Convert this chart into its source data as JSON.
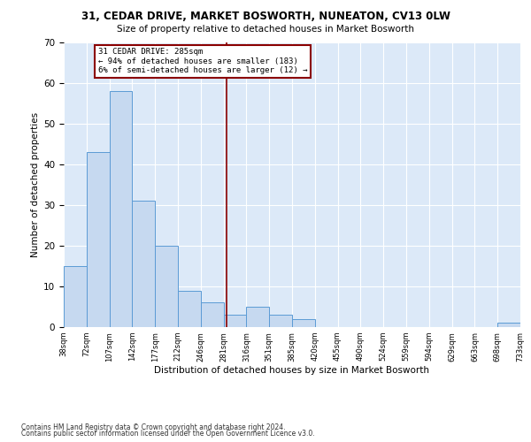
{
  "title1": "31, CEDAR DRIVE, MARKET BOSWORTH, NUNEATON, CV13 0LW",
  "title2": "Size of property relative to detached houses in Market Bosworth",
  "xlabel": "Distribution of detached houses by size in Market Bosworth",
  "ylabel": "Number of detached properties",
  "bar_values": [
    15,
    43,
    58,
    31,
    20,
    9,
    6,
    3,
    5,
    3,
    2,
    0,
    0,
    0,
    0,
    0,
    0,
    0,
    0,
    1
  ],
  "bin_edges": [
    38,
    72,
    107,
    142,
    177,
    212,
    246,
    281,
    316,
    351,
    385,
    420,
    455,
    490,
    524,
    559,
    594,
    629,
    663,
    698,
    733
  ],
  "tick_labels": [
    "38sqm",
    "72sqm",
    "107sqm",
    "142sqm",
    "177sqm",
    "212sqm",
    "246sqm",
    "281sqm",
    "316sqm",
    "351sqm",
    "385sqm",
    "420sqm",
    "455sqm",
    "490sqm",
    "524sqm",
    "559sqm",
    "594sqm",
    "629sqm",
    "663sqm",
    "698sqm",
    "733sqm"
  ],
  "bar_color": "#c6d9f0",
  "bar_edge_color": "#5b9bd5",
  "vline_x": 285,
  "vline_color": "#8b0000",
  "annotation_text": "31 CEDAR DRIVE: 285sqm\n← 94% of detached houses are smaller (183)\n6% of semi-detached houses are larger (12) →",
  "annotation_box_color": "#ffffff",
  "annotation_box_edge_color": "#8b0000",
  "ylim": [
    0,
    70
  ],
  "yticks": [
    0,
    10,
    20,
    30,
    40,
    50,
    60,
    70
  ],
  "bg_color": "#dce9f8",
  "footer1": "Contains HM Land Registry data © Crown copyright and database right 2024.",
  "footer2": "Contains public sector information licensed under the Open Government Licence v3.0.",
  "fig_width": 6.0,
  "fig_height": 5.0,
  "dpi": 100
}
